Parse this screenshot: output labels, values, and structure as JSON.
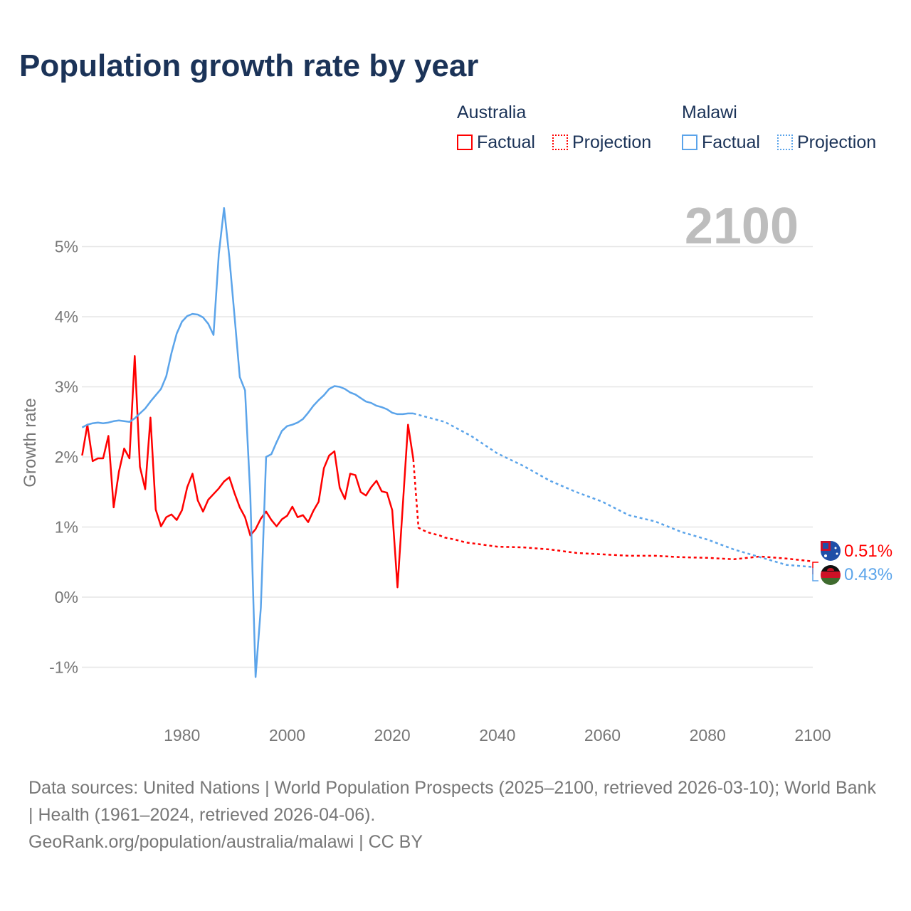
{
  "title": "Population growth rate by year",
  "legend": {
    "groups": [
      {
        "name": "Australia",
        "factual": "Factual",
        "projection": "Projection",
        "color": "#ff0000"
      },
      {
        "name": "Malawi",
        "factual": "Factual",
        "projection": "Projection",
        "color": "#5ba4ea"
      }
    ]
  },
  "footer": {
    "sources": "Data sources: United Nations | World Population Prospects (2025–2100, retrieved 2026-03-10); World Bank | Health (1961–2024, retrieved 2026-04-06).",
    "credit": "GeoRank.org/population/australia/malawi | CC BY"
  },
  "chart_data": {
    "type": "line",
    "title": "Population growth rate by year",
    "xlabel": "",
    "ylabel": "Growth rate",
    "current_year": "2100",
    "xlim": [
      1961,
      2100
    ],
    "ylim": [
      -1.5,
      5.6
    ],
    "x_ticks": [
      "1980",
      "2000",
      "2020",
      "2040",
      "2060",
      "2080",
      "2100"
    ],
    "y_ticks": [
      "-1%",
      "0%",
      "1%",
      "2%",
      "3%",
      "4%",
      "5%"
    ],
    "end_labels": {
      "australia": "0.51%",
      "malawi": "0.43%"
    },
    "series": [
      {
        "name": "Australia Factual",
        "color": "#ff0000",
        "dashed": false,
        "x": [
          1961,
          1962,
          1963,
          1964,
          1965,
          1966,
          1967,
          1968,
          1969,
          1970,
          1971,
          1972,
          1973,
          1974,
          1975,
          1976,
          1977,
          1978,
          1979,
          1980,
          1981,
          1982,
          1983,
          1984,
          1985,
          1986,
          1987,
          1988,
          1989,
          1990,
          1991,
          1992,
          1993,
          1994,
          1995,
          1996,
          1997,
          1998,
          1999,
          2000,
          2001,
          2002,
          2003,
          2004,
          2005,
          2006,
          2007,
          2008,
          2009,
          2010,
          2011,
          2012,
          2013,
          2014,
          2015,
          2016,
          2017,
          2018,
          2019,
          2020,
          2021,
          2022,
          2023,
          2024
        ],
        "y": [
          2.02,
          2.46,
          1.94,
          1.98,
          1.98,
          2.3,
          1.28,
          1.79,
          2.12,
          1.98,
          3.44,
          1.86,
          1.54,
          2.56,
          1.25,
          1.01,
          1.14,
          1.18,
          1.1,
          1.24,
          1.57,
          1.76,
          1.38,
          1.22,
          1.39,
          1.47,
          1.55,
          1.65,
          1.71,
          1.48,
          1.28,
          1.14,
          0.88,
          0.97,
          1.12,
          1.22,
          1.1,
          1.01,
          1.11,
          1.16,
          1.29,
          1.14,
          1.17,
          1.07,
          1.23,
          1.36,
          1.84,
          2.02,
          2.08,
          1.56,
          1.4,
          1.76,
          1.74,
          1.5,
          1.45,
          1.57,
          1.66,
          1.51,
          1.49,
          1.24,
          0.14,
          1.3,
          2.46,
          1.97
        ]
      },
      {
        "name": "Australia Projection",
        "color": "#ff0000",
        "dashed": true,
        "x": [
          2024,
          2025,
          2026,
          2027,
          2028,
          2029,
          2030,
          2032,
          2034,
          2036,
          2038,
          2040,
          2045,
          2050,
          2055,
          2060,
          2065,
          2070,
          2075,
          2080,
          2085,
          2090,
          2095,
          2100
        ],
        "y": [
          1.97,
          0.99,
          0.95,
          0.92,
          0.9,
          0.88,
          0.85,
          0.82,
          0.78,
          0.76,
          0.74,
          0.72,
          0.71,
          0.68,
          0.63,
          0.61,
          0.59,
          0.59,
          0.57,
          0.56,
          0.54,
          0.58,
          0.55,
          0.51
        ]
      },
      {
        "name": "Malawi Factual",
        "color": "#5ba4ea",
        "dashed": false,
        "x": [
          1961,
          1962,
          1963,
          1964,
          1965,
          1966,
          1967,
          1968,
          1969,
          1970,
          1971,
          1972,
          1973,
          1974,
          1975,
          1976,
          1977,
          1978,
          1979,
          1980,
          1981,
          1982,
          1983,
          1984,
          1985,
          1986,
          1987,
          1988,
          1989,
          1990,
          1991,
          1992,
          1993,
          1994,
          1995,
          1996,
          1997,
          1998,
          1999,
          2000,
          2001,
          2002,
          2003,
          2004,
          2005,
          2006,
          2007,
          2008,
          2009,
          2010,
          2011,
          2012,
          2013,
          2014,
          2015,
          2016,
          2017,
          2018,
          2019,
          2020,
          2021,
          2022,
          2023,
          2024
        ],
        "y": [
          2.42,
          2.46,
          2.48,
          2.49,
          2.48,
          2.49,
          2.51,
          2.52,
          2.51,
          2.5,
          2.55,
          2.62,
          2.69,
          2.79,
          2.88,
          2.97,
          3.15,
          3.48,
          3.76,
          3.93,
          4.01,
          4.04,
          4.03,
          3.99,
          3.9,
          3.74,
          4.89,
          5.55,
          4.85,
          4.0,
          3.14,
          2.95,
          1.45,
          -1.14,
          -0.15,
          2.0,
          2.04,
          2.21,
          2.37,
          2.44,
          2.46,
          2.49,
          2.54,
          2.63,
          2.73,
          2.81,
          2.88,
          2.97,
          3.01,
          3.0,
          2.97,
          2.92,
          2.89,
          2.84,
          2.79,
          2.77,
          2.73,
          2.71,
          2.68,
          2.63,
          2.61,
          2.61,
          2.62,
          2.62
        ]
      },
      {
        "name": "Malawi Projection",
        "color": "#5ba4ea",
        "dashed": true,
        "x": [
          2024,
          2025,
          2030,
          2035,
          2040,
          2045,
          2050,
          2055,
          2060,
          2065,
          2070,
          2075,
          2080,
          2085,
          2090,
          2095,
          2100
        ],
        "y": [
          2.62,
          2.6,
          2.5,
          2.3,
          2.05,
          1.87,
          1.66,
          1.5,
          1.36,
          1.17,
          1.08,
          0.93,
          0.82,
          0.68,
          0.57,
          0.46,
          0.43
        ]
      }
    ]
  }
}
